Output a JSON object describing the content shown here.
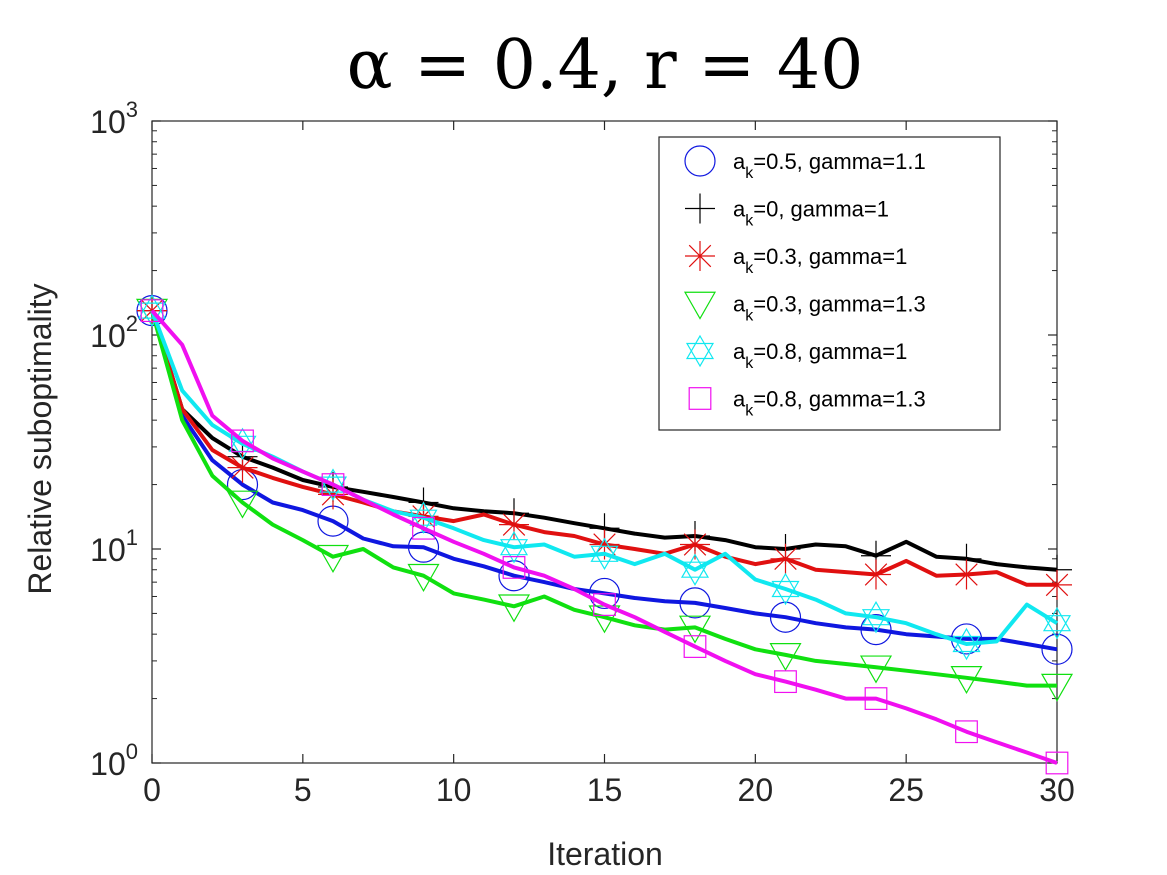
{
  "chart_data": {
    "type": "line",
    "title": "α = 0.4, r = 40",
    "xlabel": "Iteration",
    "ylabel": "Relative suboptimality",
    "xlim": [
      0,
      30
    ],
    "ylim": [
      1,
      1000
    ],
    "yscale": "log",
    "xticks": [
      0,
      5,
      10,
      15,
      20,
      25,
      30
    ],
    "yticks": [
      {
        "value": 1,
        "base": "10",
        "exp": "0"
      },
      {
        "value": 10,
        "base": "10",
        "exp": "1"
      },
      {
        "value": 100,
        "base": "10",
        "exp": "2"
      },
      {
        "value": 1000,
        "base": "10",
        "exp": "3"
      }
    ],
    "legend_position": "top-right",
    "x": [
      0,
      1,
      2,
      3,
      4,
      5,
      6,
      7,
      8,
      9,
      10,
      11,
      12,
      13,
      14,
      15,
      16,
      17,
      18,
      19,
      20,
      21,
      22,
      23,
      24,
      25,
      26,
      27,
      28,
      29,
      30
    ],
    "marker_every": 3,
    "series": [
      {
        "name": "a_k=0.5, gamma=1.1",
        "label_main": "a",
        "label_sub": "k",
        "label_rest": "=0.5, gamma=1.1",
        "color": "#0f17e0",
        "marker": "circle",
        "values": [
          130,
          42,
          26,
          20,
          16.5,
          15.2,
          13.5,
          11.2,
          10.3,
          10.2,
          9.0,
          8.3,
          7.5,
          7.0,
          6.5,
          6.2,
          5.9,
          5.7,
          5.6,
          5.3,
          5.0,
          4.8,
          4.5,
          4.3,
          4.2,
          4.0,
          3.9,
          3.8,
          3.8,
          3.6,
          3.4
        ]
      },
      {
        "name": "a_k=0, gamma=1",
        "label_main": "a",
        "label_sub": "k",
        "label_rest": "=0, gamma=1",
        "color": "#000000",
        "marker": "plus",
        "values": [
          130,
          45,
          33,
          27,
          24,
          21,
          19.5,
          18.5,
          17.5,
          16.5,
          15.5,
          15,
          14.7,
          14,
          13.2,
          12.5,
          11.8,
          11.3,
          11.5,
          11.0,
          10.2,
          10.0,
          10.5,
          10.3,
          9.3,
          10.8,
          9.2,
          9.0,
          8.5,
          8.2,
          8.0
        ]
      },
      {
        "name": "a_k=0.3, gamma=1",
        "label_main": "a",
        "label_sub": "k",
        "label_rest": "=0.3, gamma=1",
        "color": "#e01010",
        "marker": "asterisk",
        "values": [
          130,
          45,
          29,
          24,
          21.5,
          19.5,
          18,
          16.5,
          15,
          14.2,
          13.5,
          14.5,
          13,
          12,
          11.5,
          10.5,
          10.0,
          9.5,
          10.5,
          9.2,
          8.5,
          9.0,
          8.0,
          7.8,
          7.6,
          8.8,
          7.5,
          7.6,
          7.8,
          6.8,
          6.8
        ]
      },
      {
        "name": "a_k=0.3, gamma=1.3",
        "label_main": "a",
        "label_sub": "k",
        "label_rest": "=0.3, gamma=1.3",
        "color": "#10e010",
        "marker": "triangle-down",
        "values": [
          130,
          40,
          22,
          16.5,
          13,
          11,
          9.2,
          10,
          8.2,
          7.5,
          6.2,
          5.8,
          5.4,
          6.0,
          5.2,
          4.8,
          4.4,
          4.2,
          4.3,
          3.8,
          3.4,
          3.2,
          3.0,
          2.9,
          2.8,
          2.7,
          2.6,
          2.5,
          2.4,
          2.3,
          2.3
        ]
      },
      {
        "name": "a_k=0.8, gamma=1",
        "label_main": "a",
        "label_sub": "k",
        "label_rest": "=0.8, gamma=1",
        "color": "#10e8f0",
        "marker": "hexagram",
        "values": [
          130,
          55,
          38,
          31,
          27,
          23,
          20,
          17,
          15,
          14,
          12.5,
          11,
          10.2,
          10.5,
          9.2,
          9.5,
          8.5,
          9.5,
          8.0,
          9.5,
          7.2,
          6.5,
          5.8,
          5.0,
          4.8,
          4.5,
          4.0,
          3.6,
          3.7,
          5.5,
          4.5
        ]
      },
      {
        "name": "a_k=0.8, gamma=1.3",
        "label_main": "a",
        "label_sub": "k",
        "label_rest": "=0.8, gamma=1.3",
        "color": "#f010f0",
        "marker": "square",
        "values": [
          130,
          90,
          42,
          32,
          26.5,
          23,
          20,
          17,
          14.5,
          12.5,
          10.8,
          9.5,
          8.2,
          7.5,
          6.5,
          5.5,
          4.8,
          4.1,
          3.5,
          3.0,
          2.6,
          2.4,
          2.2,
          2.0,
          2.0,
          1.8,
          1.6,
          1.4,
          1.25,
          1.12,
          1.0
        ]
      }
    ]
  }
}
